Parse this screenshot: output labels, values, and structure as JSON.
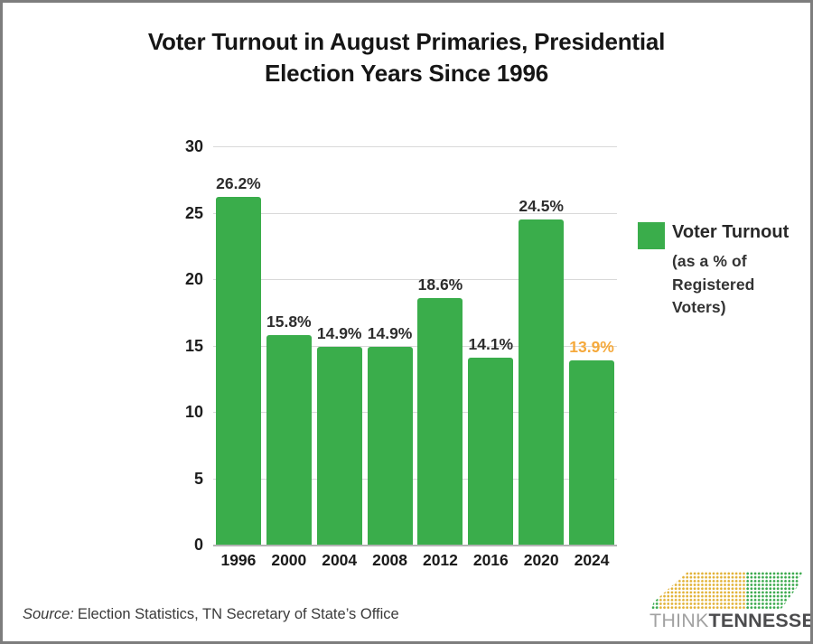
{
  "title": {
    "line1": "Voter Turnout in August Primaries, Presidential",
    "line2": "Election Years Since 1996"
  },
  "chart_data": {
    "type": "bar",
    "title": "Voter Turnout in August Primaries, Presidential Election Years Since 1996",
    "categories": [
      "1996",
      "2000",
      "2004",
      "2008",
      "2012",
      "2016",
      "2020",
      "2024"
    ],
    "values": [
      26.2,
      15.8,
      14.9,
      14.9,
      18.6,
      14.1,
      24.5,
      13.9
    ],
    "value_labels": [
      "26.2%",
      "15.8%",
      "14.9%",
      "14.9%",
      "18.6%",
      "14.1%",
      "24.5%",
      "13.9%"
    ],
    "highlight_index": 7,
    "xlabel": "",
    "ylabel": "",
    "ylim": [
      0,
      30
    ],
    "yticks": [
      0,
      5,
      10,
      15,
      20,
      25,
      30
    ],
    "grid": true,
    "legend_position": "right",
    "colors": {
      "bar": "#3aad4b",
      "value_label": "#2d2d2d",
      "highlight_value_label": "#f5a93c",
      "gridline": "#d9d9d9",
      "axis_line": "#b3b3b3"
    }
  },
  "legend": {
    "swatch_color": "#3aad4b",
    "title": "Voter Turnout",
    "subtitle_lines": [
      "(as a % of",
      "Registered",
      "Voters)"
    ]
  },
  "source": {
    "prefix": "Source:",
    "text": "Election Statistics, TN Secretary of State’s Office"
  },
  "logo": {
    "think": "THINK",
    "tennessee": "TENNESSEE",
    "think_color": "#a2a2a2",
    "tennessee_color": "#4b4b4d",
    "dot_green": "#3aa94c",
    "dot_gold": "#e2b237"
  }
}
